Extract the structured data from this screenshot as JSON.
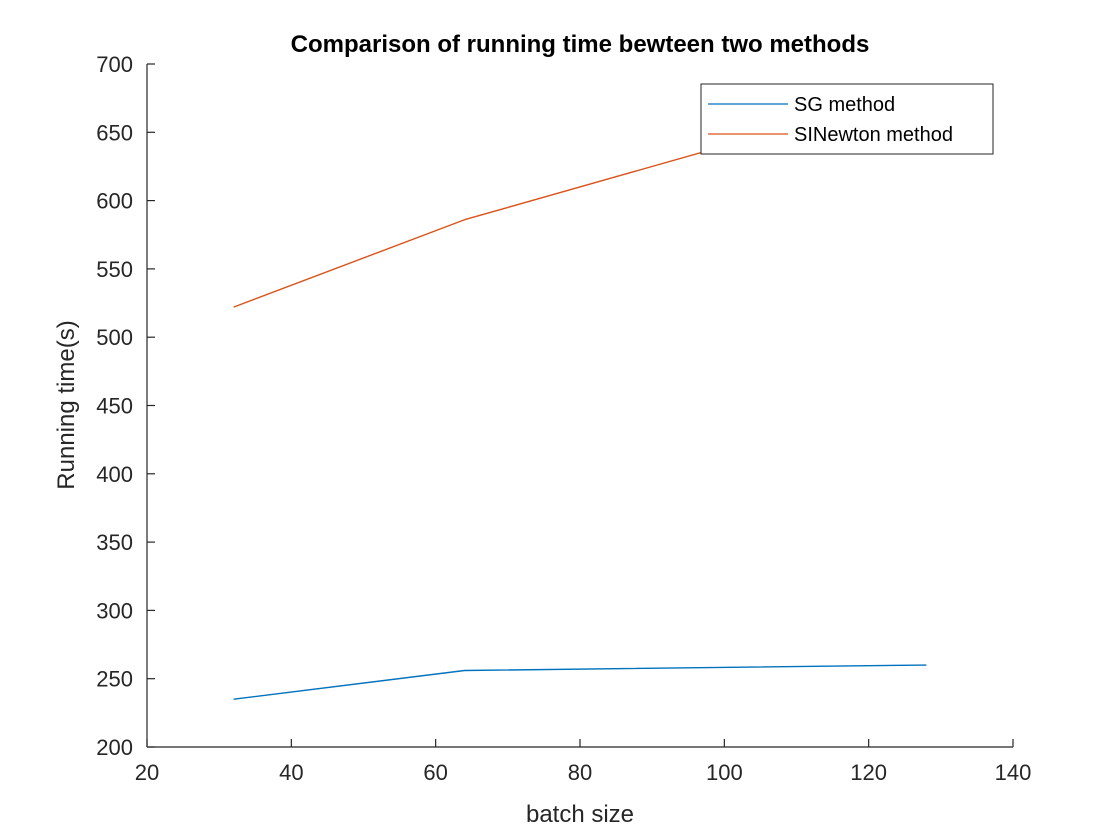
{
  "chart_data": {
    "type": "line",
    "title": "Comparison of running time bewteen two methods",
    "xlabel": "batch size",
    "ylabel": "Running time(s)",
    "xlim": [
      20,
      140
    ],
    "ylim": [
      200,
      700
    ],
    "xticks": [
      20,
      40,
      60,
      80,
      100,
      120,
      140
    ],
    "yticks": [
      200,
      250,
      300,
      350,
      400,
      450,
      500,
      550,
      600,
      650,
      700
    ],
    "grid": false,
    "legend_position": "top-right",
    "series": [
      {
        "name": "SG method",
        "color": "#0072BD",
        "x": [
          32,
          64,
          128
        ],
        "y": [
          235,
          256,
          260
        ]
      },
      {
        "name": "SINewton method",
        "color": "#D95319",
        "x": [
          32,
          64,
          128
        ],
        "y": [
          522,
          586,
          682
        ]
      }
    ]
  }
}
